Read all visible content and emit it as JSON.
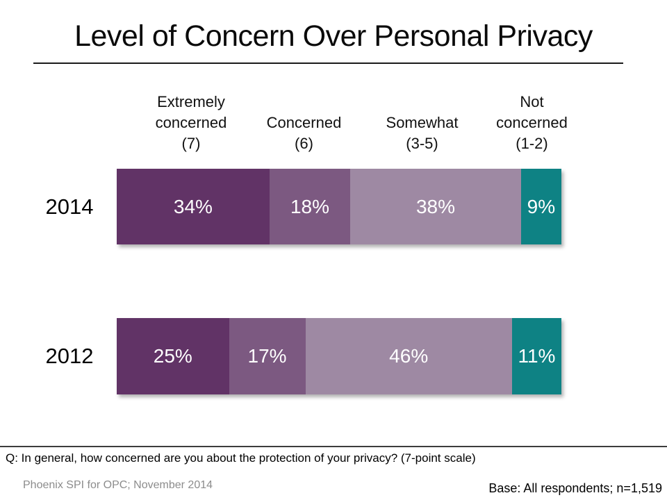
{
  "slide": {
    "title": "Level of Concern Over Personal Privacy",
    "footnote_question": "Q: In general, how concerned are you about the protection of your privacy? (7-point scale)",
    "source": "Phoenix SPI for OPC; November 2014",
    "base_note": "Base: All respondents; n=1,519"
  },
  "chart_data": {
    "type": "bar",
    "subtype": "stacked-horizontal-100pct",
    "unit": "%",
    "title": "Level of Concern Over Personal Privacy",
    "categories": [
      "2014",
      "2012"
    ],
    "column_headers": [
      "Extremely\nconcerned\n(7)",
      "Concerned\n(6)",
      "Somewhat\n(3-5)",
      "Not\nconcerned\n(1-2)"
    ],
    "series": [
      {
        "name": "Extremely concerned (7)",
        "color": "#613366",
        "values": [
          34,
          25
        ]
      },
      {
        "name": "Concerned (6)",
        "color": "#7C5981",
        "values": [
          18,
          17
        ]
      },
      {
        "name": "Somewhat (3-5)",
        "color": "#9E89A3",
        "values": [
          38,
          46
        ]
      },
      {
        "name": "Not concerned (1-2)",
        "color": "#0E8284",
        "values": [
          9,
          11
        ]
      }
    ],
    "layout": {
      "axes_visible": false,
      "grid": false,
      "legend_position": "column-headers-above-bars",
      "value_labels": "inside-segments-white"
    }
  }
}
